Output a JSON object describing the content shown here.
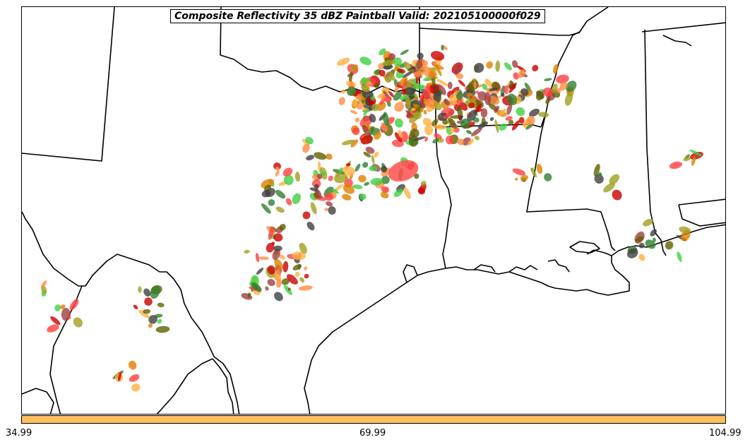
{
  "title": "Composite Reflectivity 35 dBZ Paintball Valid: 202105100000f029",
  "colorbar": {
    "color": "#ffc060",
    "tick_labels": [
      "34.99",
      "69.99",
      "104.99"
    ]
  },
  "map": {
    "region": "South-central United States",
    "boundary_color": "#000000",
    "member_colors": [
      "#ff4040",
      "#ff8c40",
      "#ffb040",
      "#a0a020",
      "#a04040",
      "#404040",
      "#308030",
      "#40d040",
      "#cc0000",
      "#606000",
      "#e08000"
    ]
  }
}
